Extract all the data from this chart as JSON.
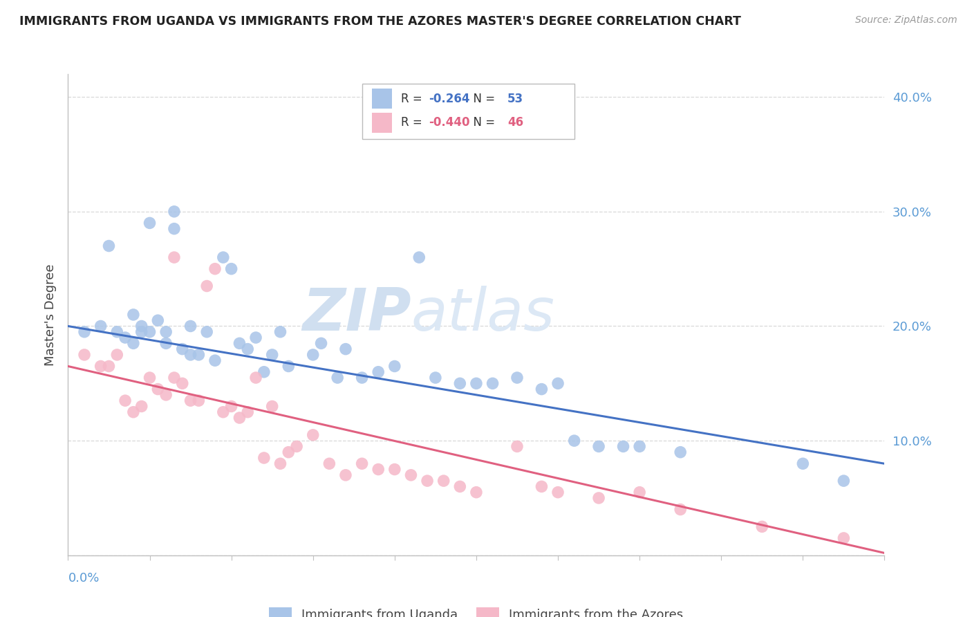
{
  "title": "IMMIGRANTS FROM UGANDA VS IMMIGRANTS FROM THE AZORES MASTER'S DEGREE CORRELATION CHART",
  "source": "Source: ZipAtlas.com",
  "ylabel": "Master's Degree",
  "legend1_label": "Immigrants from Uganda",
  "legend2_label": "Immigrants from the Azores",
  "r1": -0.264,
  "n1": 53,
  "r2": -0.44,
  "n2": 46,
  "color_blue": "#a8c4e8",
  "color_pink": "#f5b8c8",
  "line_blue": "#4472c4",
  "line_pink": "#e06080",
  "watermark_zip": "ZIP",
  "watermark_atlas": "atlas",
  "xlim": [
    0.0,
    0.1
  ],
  "ylim": [
    0.0,
    0.42
  ],
  "yticks": [
    0.0,
    0.1,
    0.2,
    0.3,
    0.4
  ],
  "ytick_labels": [
    "",
    "10.0%",
    "20.0%",
    "30.0%",
    "40.0%"
  ],
  "blue_scatter_x": [
    0.002,
    0.004,
    0.005,
    0.006,
    0.007,
    0.008,
    0.008,
    0.009,
    0.009,
    0.01,
    0.01,
    0.011,
    0.012,
    0.012,
    0.013,
    0.013,
    0.014,
    0.015,
    0.015,
    0.016,
    0.017,
    0.018,
    0.019,
    0.02,
    0.021,
    0.022,
    0.023,
    0.024,
    0.025,
    0.026,
    0.027,
    0.03,
    0.031,
    0.033,
    0.034,
    0.036,
    0.038,
    0.04,
    0.043,
    0.045,
    0.048,
    0.05,
    0.052,
    0.055,
    0.058,
    0.06,
    0.062,
    0.065,
    0.068,
    0.07,
    0.075,
    0.09,
    0.095
  ],
  "blue_scatter_y": [
    0.195,
    0.2,
    0.27,
    0.195,
    0.19,
    0.21,
    0.185,
    0.195,
    0.2,
    0.29,
    0.195,
    0.205,
    0.185,
    0.195,
    0.3,
    0.285,
    0.18,
    0.175,
    0.2,
    0.175,
    0.195,
    0.17,
    0.26,
    0.25,
    0.185,
    0.18,
    0.19,
    0.16,
    0.175,
    0.195,
    0.165,
    0.175,
    0.185,
    0.155,
    0.18,
    0.155,
    0.16,
    0.165,
    0.26,
    0.155,
    0.15,
    0.15,
    0.15,
    0.155,
    0.145,
    0.15,
    0.1,
    0.095,
    0.095,
    0.095,
    0.09,
    0.08,
    0.065
  ],
  "pink_scatter_x": [
    0.002,
    0.004,
    0.005,
    0.006,
    0.007,
    0.008,
    0.009,
    0.01,
    0.011,
    0.012,
    0.013,
    0.013,
    0.014,
    0.015,
    0.016,
    0.017,
    0.018,
    0.019,
    0.02,
    0.021,
    0.022,
    0.023,
    0.024,
    0.025,
    0.026,
    0.027,
    0.028,
    0.03,
    0.032,
    0.034,
    0.036,
    0.038,
    0.04,
    0.042,
    0.044,
    0.046,
    0.048,
    0.05,
    0.055,
    0.058,
    0.06,
    0.065,
    0.07,
    0.075,
    0.085,
    0.095
  ],
  "pink_scatter_y": [
    0.175,
    0.165,
    0.165,
    0.175,
    0.135,
    0.125,
    0.13,
    0.155,
    0.145,
    0.14,
    0.155,
    0.26,
    0.15,
    0.135,
    0.135,
    0.235,
    0.25,
    0.125,
    0.13,
    0.12,
    0.125,
    0.155,
    0.085,
    0.13,
    0.08,
    0.09,
    0.095,
    0.105,
    0.08,
    0.07,
    0.08,
    0.075,
    0.075,
    0.07,
    0.065,
    0.065,
    0.06,
    0.055,
    0.095,
    0.06,
    0.055,
    0.05,
    0.055,
    0.04,
    0.025,
    0.015
  ],
  "blue_line_x": [
    0.0,
    0.1
  ],
  "blue_line_y": [
    0.2,
    0.08
  ],
  "pink_line_x": [
    0.0,
    0.1
  ],
  "pink_line_y": [
    0.165,
    0.002
  ],
  "tick_color": "#5b9bd5",
  "grid_color": "#d8d8d8",
  "spine_color": "#c0c0c0"
}
